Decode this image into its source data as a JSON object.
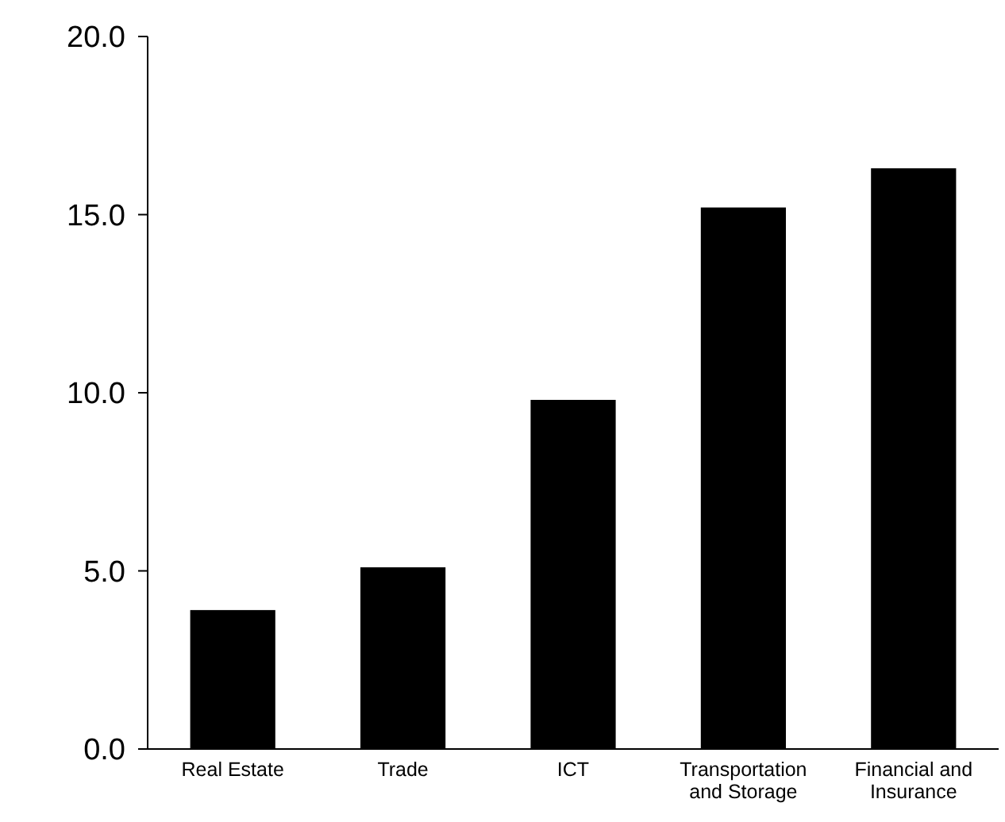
{
  "chart_data": {
    "type": "bar",
    "categories": [
      "Real Estate",
      "Trade",
      "ICT",
      "Transportation and Storage",
      "Financial and Insurance"
    ],
    "values": [
      3.9,
      5.1,
      9.8,
      15.2,
      16.3
    ],
    "color": "#000000",
    "ylim": [
      0,
      20
    ],
    "yticks": [
      {
        "value": 0,
        "label": "0.0"
      },
      {
        "value": 5,
        "label": "5.0"
      },
      {
        "value": 10,
        "label": "10.0"
      },
      {
        "value": 15,
        "label": "15.0"
      },
      {
        "value": 20,
        "label": "20.0"
      }
    ],
    "grid": false
  }
}
